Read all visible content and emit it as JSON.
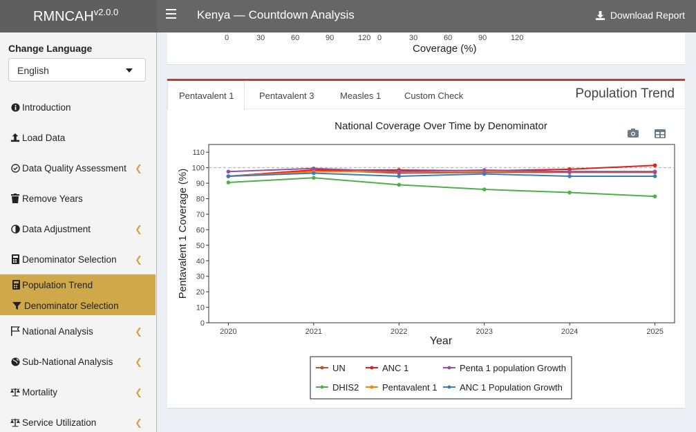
{
  "header": {
    "brand": "RMNCAH",
    "version": "v2.0.0",
    "title": "Kenya — Countdown Analysis",
    "download_label": "Download Report"
  },
  "sidebar": {
    "language_label": "Change Language",
    "language_value": "English",
    "items": [
      {
        "label": "Introduction",
        "icon": "info-circle-icon",
        "chevron": false
      },
      {
        "label": "Load Data",
        "icon": "upload-icon",
        "chevron": false
      },
      {
        "label": "Data Quality Assessment",
        "icon": "check-circle-icon",
        "chevron": true
      },
      {
        "label": "Remove Years",
        "icon": "trash-icon",
        "chevron": false
      },
      {
        "label": "Data Adjustment",
        "icon": "adjust-icon",
        "chevron": true
      },
      {
        "label": "Denominator Selection",
        "icon": "calculator-icon",
        "chevron": true
      }
    ],
    "sub_items": [
      {
        "label": "Population Trend",
        "icon": "calculator-icon"
      },
      {
        "label": "Denominator Selection",
        "icon": "filter-icon"
      }
    ],
    "items_after": [
      {
        "label": "National Analysis",
        "icon": "flag-icon",
        "chevron": true
      },
      {
        "label": "Sub-National Analysis",
        "icon": "globe-icon",
        "chevron": true
      },
      {
        "label": "Mortality",
        "icon": "balance-scale-icon",
        "chevron": true
      },
      {
        "label": "Service Utilization",
        "icon": "balance-scale-icon",
        "chevron": true
      }
    ]
  },
  "top_panel": {
    "ticks_left": [
      "0",
      "30",
      "60",
      "90",
      "120"
    ],
    "ticks_right": [
      "0",
      "30",
      "60",
      "90",
      "120"
    ],
    "axis_label": "Coverage (%)"
  },
  "tabs": [
    {
      "label": "Pentavalent 1",
      "active": true
    },
    {
      "label": "Pentavalent 3",
      "active": false
    },
    {
      "label": "Measles 1",
      "active": false
    },
    {
      "label": "Custom Check",
      "active": false
    }
  ],
  "box_title": "Population Trend",
  "toolbar": {
    "camera": "camera-icon",
    "table": "table-icon"
  },
  "chart_data": {
    "type": "line",
    "title": "National Coverage Over Time by Denominator",
    "xlabel": "Year",
    "ylabel": "Pentavalent 1 Coverage (%)",
    "x": [
      2020,
      2021,
      2022,
      2023,
      2024,
      2025
    ],
    "ylim": [
      0,
      115
    ],
    "yticks": [
      0,
      10,
      20,
      30,
      40,
      50,
      60,
      70,
      80,
      90,
      100,
      110
    ],
    "reference_line": 100,
    "grid": false,
    "legend_position": "bottom",
    "series": [
      {
        "name": "UN",
        "color": "#b5552d",
        "values": [
          94.5,
          98.5,
          96.5,
          97.0,
          97.0,
          97.0
        ]
      },
      {
        "name": "DHIS2",
        "color": "#4daf4a",
        "values": [
          90.5,
          93.5,
          89.0,
          86.0,
          84.0,
          81.5
        ]
      },
      {
        "name": "ANC 1",
        "color": "#e41a1c",
        "values": [
          94.5,
          98.5,
          98.5,
          98.0,
          99.0,
          101.5
        ]
      },
      {
        "name": "Pentavalent 1",
        "color": "#ff7f00",
        "values": [
          94.5,
          97.5,
          97.5,
          98.0,
          97.5,
          97.5
        ]
      },
      {
        "name": "Penta 1 population Growth",
        "color": "#984ea3",
        "values": [
          97.5,
          99.5,
          97.5,
          98.5,
          97.5,
          97.5
        ]
      },
      {
        "name": "ANC 1 Population Growth",
        "color": "#377eb8",
        "values": [
          94.5,
          96.5,
          94.5,
          96.0,
          94.5,
          94.5
        ]
      }
    ]
  }
}
